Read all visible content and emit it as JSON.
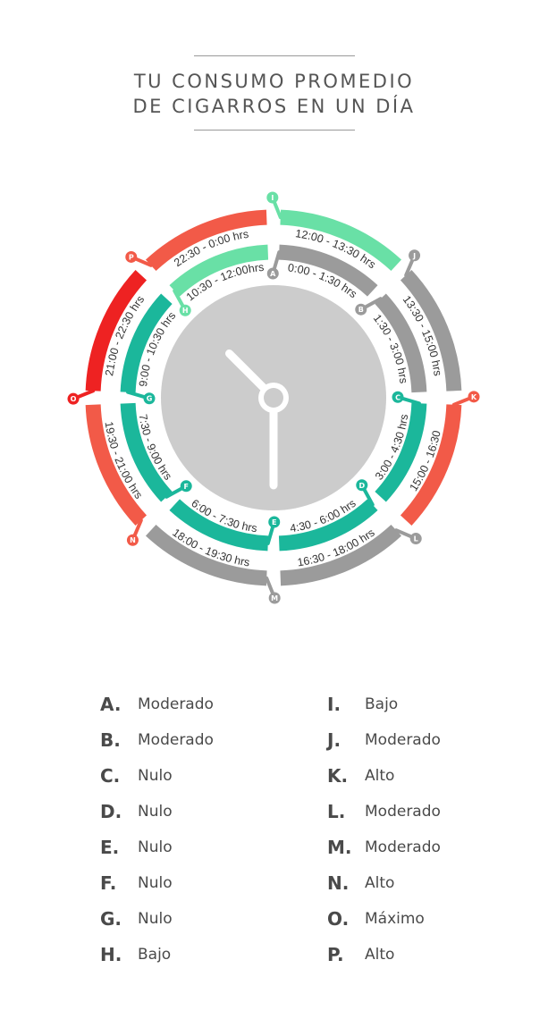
{
  "title": {
    "line1": "TU CONSUMO PROMEDIO",
    "line2": "DE CIGARROS EN UN DÍA"
  },
  "colors": {
    "Nulo": "#1bb79b",
    "Bajo": "#69e0a6",
    "Moderado": "#9b9b9b",
    "Alto": "#f25a48",
    "Máximo": "#ee2222",
    "clock_face": "#cccccc",
    "hands": "#ffffff"
  },
  "chart_data": {
    "type": "radial-timeline",
    "title": "TU CONSUMO PROMEDIO DE CIGARROS EN UN DÍA",
    "segments": [
      {
        "letter": "A",
        "time": "0:00 - 1:30 hrs",
        "start": 0.0,
        "end": 1.5,
        "level": "Moderado"
      },
      {
        "letter": "B",
        "time": "1:30 - 3:00 hrs",
        "start": 1.5,
        "end": 3.0,
        "level": "Moderado"
      },
      {
        "letter": "C",
        "time": "3:00 - 4:30 hrs",
        "start": 3.0,
        "end": 4.5,
        "level": "Nulo"
      },
      {
        "letter": "D",
        "time": "4:30 - 6:00 hrs",
        "start": 4.5,
        "end": 6.0,
        "level": "Nulo"
      },
      {
        "letter": "E",
        "time": "6:00 - 7:30 hrs",
        "start": 6.0,
        "end": 7.5,
        "level": "Nulo"
      },
      {
        "letter": "F",
        "time": "7:30 - 9:00 hrs",
        "start": 7.5,
        "end": 9.0,
        "level": "Nulo"
      },
      {
        "letter": "G",
        "time": "9:00 - 10:30 hrs",
        "start": 9.0,
        "end": 10.5,
        "level": "Nulo"
      },
      {
        "letter": "H",
        "time": "10:30 - 12:00hrs",
        "start": 10.5,
        "end": 12.0,
        "level": "Bajo"
      },
      {
        "letter": "I",
        "time": "12:00 - 13:30 hrs",
        "start": 12.0,
        "end": 13.5,
        "level": "Bajo"
      },
      {
        "letter": "J",
        "time": "13:30 - 15:00 hrs",
        "start": 13.5,
        "end": 15.0,
        "level": "Moderado"
      },
      {
        "letter": "K",
        "time": "15:00 - 16:30",
        "start": 15.0,
        "end": 16.5,
        "level": "Alto"
      },
      {
        "letter": "L",
        "time": "16:30 - 18:00 hrs",
        "start": 16.5,
        "end": 18.0,
        "level": "Moderado"
      },
      {
        "letter": "M",
        "time": "18:00 - 19:30 hrs",
        "start": 18.0,
        "end": 19.5,
        "level": "Moderado"
      },
      {
        "letter": "N",
        "time": "19:30 - 21:00 hrs",
        "start": 19.5,
        "end": 21.0,
        "level": "Alto"
      },
      {
        "letter": "O",
        "time": "21:00 - 22:30 hrs",
        "start": 21.0,
        "end": 22.5,
        "level": "Máximo"
      },
      {
        "letter": "P",
        "time": "22:30 - 0:00 hrs",
        "start": 22.5,
        "end": 24.0,
        "level": "Alto"
      }
    ],
    "clock_time": "10:30"
  },
  "legend": {
    "left": [
      {
        "letter": "A.",
        "level": "Moderado"
      },
      {
        "letter": "B.",
        "level": "Moderado"
      },
      {
        "letter": "C.",
        "level": "Nulo"
      },
      {
        "letter": "D.",
        "level": "Nulo"
      },
      {
        "letter": "E.",
        "level": "Nulo"
      },
      {
        "letter": "F.",
        "level": "Nulo"
      },
      {
        "letter": "G.",
        "level": "Nulo"
      },
      {
        "letter": "H.",
        "level": "Bajo"
      }
    ],
    "right": [
      {
        "letter": "I.",
        "level": "Bajo"
      },
      {
        "letter": "J.",
        "level": "Moderado"
      },
      {
        "letter": "K.",
        "level": "Alto"
      },
      {
        "letter": "L.",
        "level": "Moderado"
      },
      {
        "letter": "M.",
        "level": "Moderado"
      },
      {
        "letter": "N.",
        "level": "Alto"
      },
      {
        "letter": "O.",
        "level": "Máximo"
      },
      {
        "letter": "P.",
        "level": "Alto"
      }
    ]
  }
}
